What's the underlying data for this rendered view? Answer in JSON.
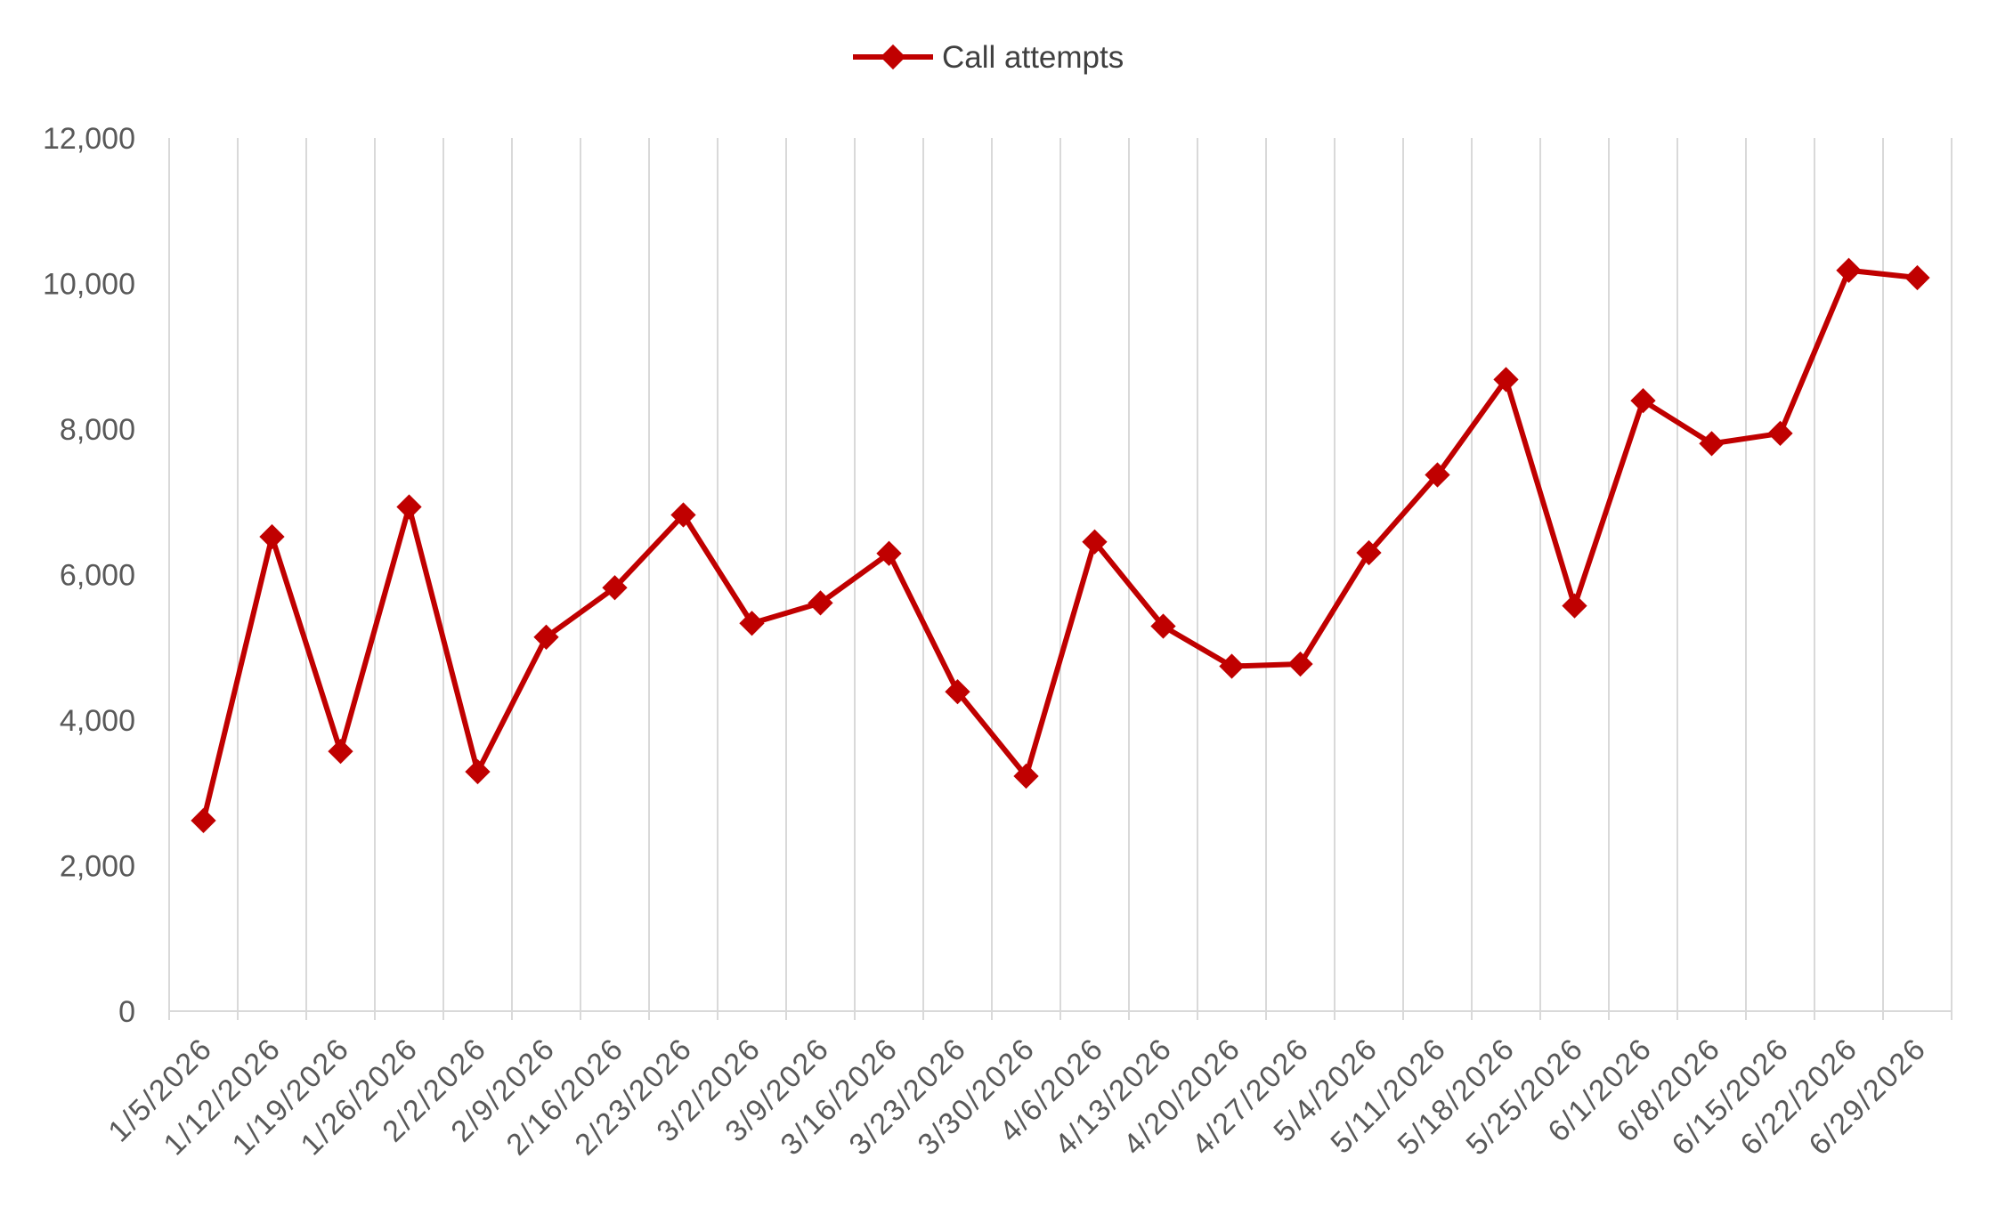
{
  "chart_data": {
    "type": "line",
    "title": "",
    "xlabel": "",
    "ylabel": "",
    "ylim": [
      0,
      12000
    ],
    "y_ticks": [
      0,
      2000,
      4000,
      6000,
      8000,
      10000,
      12000
    ],
    "y_tick_labels": [
      "0",
      "2,000",
      "4,000",
      "6,000",
      "8,000",
      "10,000",
      "12,000"
    ],
    "grid": "vertical",
    "legend_position": "top-center",
    "categories": [
      "1/5/2026",
      "1/12/2026",
      "1/19/2026",
      "1/26/2026",
      "2/2/2026",
      "2/9/2026",
      "2/16/2026",
      "2/23/2026",
      "3/2/2026",
      "3/9/2026",
      "3/16/2026",
      "3/23/2026",
      "3/30/2026",
      "4/6/2026",
      "4/13/2026",
      "4/20/2026",
      "4/27/2026",
      "5/4/2026",
      "5/11/2026",
      "5/18/2026",
      "5/25/2026",
      "6/1/2026",
      "6/8/2026",
      "6/15/2026",
      "6/22/2026",
      "6/29/2026"
    ],
    "series": [
      {
        "name": "Call attempts",
        "color": "#C00000",
        "marker": "diamond",
        "values": [
          2620,
          6520,
          3570,
          6930,
          3290,
          5140,
          5820,
          6820,
          5330,
          5610,
          6290,
          4390,
          3230,
          6450,
          5290,
          4740,
          4770,
          6300,
          7370,
          8680,
          5570,
          8390,
          7800,
          7940,
          10180,
          10080
        ]
      }
    ]
  }
}
